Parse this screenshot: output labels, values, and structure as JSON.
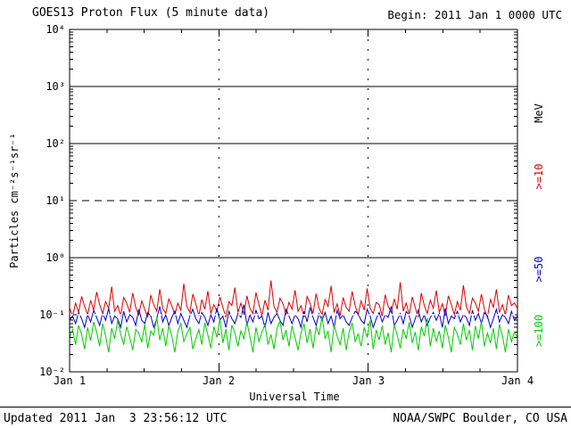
{
  "header": {
    "title": "GOES13 Proton Flux (5 minute data)",
    "begin_label": "Begin: 2011 Jan 1 0000 UTC"
  },
  "footer": {
    "updated": "Updated 2011 Jan  3 23:56:12 UTC",
    "source": "NOAA/SWPC Boulder, CO USA"
  },
  "axes": {
    "y_label": "Particles cm⁻²s⁻¹sr⁻¹",
    "x_label": "Universal Time",
    "y_ticks": [
      "10⁴",
      "10³",
      "10²",
      "10¹",
      "10⁰",
      "10⁻¹",
      "10⁻²"
    ],
    "x_ticks": [
      "Jan 1",
      "Jan 2",
      "Jan 3",
      "Jan 4"
    ]
  },
  "legend": {
    "unit": "MeV",
    "unit_color": "#000000",
    "items": [
      {
        "label": ">=10",
        "color": "#dd0000"
      },
      {
        "label": ">=50",
        "color": "#0000cc"
      },
      {
        "label": ">=100",
        "color": "#00cc00"
      }
    ]
  },
  "chart_data": {
    "type": "line",
    "title": "GOES13 Proton Flux (5 minute data)",
    "xlabel": "Universal Time",
    "ylabel": "Particles cm⁻²s⁻¹sr⁻¹",
    "x_range": [
      "2011 Jan 1 0000 UTC",
      "2011 Jan 4 0000 UTC"
    ],
    "x_tick_days": [
      "Jan 1",
      "Jan 2",
      "Jan 3",
      "Jan 4"
    ],
    "y_scale": "log10",
    "ylim": [
      0.01,
      10000
    ],
    "gridlines": {
      "solid_y": [
        1,
        100,
        1000
      ],
      "dashed_y": [
        10
      ],
      "white_dashed_y": [
        0.1
      ],
      "dashed_x_days": [
        1,
        2
      ]
    },
    "legend_position": "right",
    "unit_scale": 0.001,
    "series": [
      {
        "name": ">=10 MeV",
        "color": "#dd0000",
        "approx_level": 0.14,
        "range": [
          0.09,
          0.42
        ],
        "values_milli": [
          130,
          95,
          160,
          110,
          210,
          140,
          100,
          180,
          120,
          250,
          150,
          105,
          170,
          130,
          310,
          115,
          145,
          95,
          200,
          160,
          110,
          240,
          135,
          100,
          175,
          125,
          90,
          220,
          150,
          115,
          280,
          130,
          105,
          190,
          145,
          100,
          160,
          120,
          350,
          140,
          110,
          230,
          155,
          95,
          185,
          125,
          260,
          105,
          150,
          115,
          205,
          135,
          90,
          170,
          145,
          300,
          110,
          160,
          100,
          215,
          130,
          105,
          245,
          150,
          95,
          180,
          120,
          400,
          140,
          110,
          195,
          155,
          100,
          165,
          125,
          270,
          115,
          145,
          90,
          210,
          160,
          105,
          235,
          130,
          100,
          185,
          140,
          320,
          110,
          155,
          95,
          200,
          135,
          115,
          255,
          145,
          100,
          175,
          120,
          290,
          130,
          105,
          165,
          150,
          95,
          225,
          140,
          110,
          190,
          125,
          370,
          115,
          160,
          100,
          205,
          135,
          90,
          240,
          145,
          105,
          180,
          130,
          265,
          110,
          155,
          95,
          215,
          150,
          100,
          170,
          120,
          330,
          140,
          105,
          195,
          160,
          115,
          230,
          125,
          90,
          185,
          135,
          280,
          110,
          150,
          100,
          220,
          145,
          160,
          130
        ]
      },
      {
        "name": ">=50 MeV",
        "color": "#0000cc",
        "approx_level": 0.09,
        "range": [
          0.055,
          0.15
        ],
        "values_milli": [
          80,
          95,
          70,
          110,
          85,
          60,
          100,
          75,
          120,
          90,
          65,
          105,
          80,
          130,
          70,
          95,
          85,
          60,
          115,
          75,
          100,
          90,
          65,
          125,
          80,
          70,
          110,
          95,
          60,
          85,
          140,
          75,
          100,
          65,
          90,
          115,
          70,
          105,
          80,
          60,
          95,
          125,
          85,
          70,
          110,
          90,
          65,
          100,
          75,
          130,
          80,
          95,
          60,
          115,
          85,
          70,
          105,
          90,
          150,
          65,
          100,
          75,
          120,
          85,
          95,
          60,
          110,
          70,
          90,
          105,
          80,
          65,
          125,
          95,
          70,
          100,
          85,
          60,
          115,
          75,
          135,
          90,
          65,
          105,
          80,
          110,
          70,
          95,
          60,
          120,
          85,
          100,
          75,
          65,
          90,
          115,
          105,
          80,
          70,
          125,
          95,
          60,
          85,
          110,
          75,
          100,
          90,
          140,
          65,
          80,
          105,
          70,
          115,
          95,
          60,
          85,
          120,
          75,
          100,
          65,
          90,
          110,
          80,
          105,
          60,
          130,
          70,
          95,
          85,
          115,
          75,
          100,
          90,
          65,
          120,
          80,
          105,
          70,
          110,
          95,
          60,
          85,
          125,
          75,
          100,
          90,
          70,
          115,
          80,
          95
        ]
      },
      {
        "name": ">=100 MeV",
        "color": "#00cc00",
        "approx_level": 0.045,
        "range": [
          0.02,
          0.095
        ],
        "values_milli": [
          40,
          55,
          30,
          65,
          45,
          25,
          60,
          35,
          75,
          50,
          28,
          70,
          42,
          22,
          58,
          38,
          80,
          46,
          30,
          62,
          40,
          24,
          55,
          48,
          33,
          68,
          26,
          52,
          44,
          90,
          36,
          58,
          28,
          64,
          42,
          22,
          50,
          70,
          34,
          46,
          60,
          25,
          38,
          55,
          30,
          72,
          44,
          26,
          62,
          40,
          85,
          32,
          56,
          24,
          66,
          48,
          28,
          52,
          38,
          74,
          42,
          22,
          60,
          34,
          50,
          68,
          30,
          45,
          25,
          58,
          78,
          36,
          54,
          28,
          64,
          40,
          24,
          48,
          70,
          32,
          56,
          26,
          62,
          44,
          95,
          38,
          52,
          22,
          66,
          42,
          30,
          58,
          24,
          50,
          72,
          34,
          46,
          28,
          60,
          40,
          80,
          25,
          54,
          36,
          64,
          30,
          48,
          22,
          68,
          44,
          26,
          56,
          38,
          74,
          32,
          50,
          24,
          62,
          42,
          88,
          28,
          58,
          34,
          52,
          26,
          66,
          40,
          22,
          60,
          46,
          30,
          70,
          36,
          54,
          24,
          64,
          38,
          76,
          28,
          48,
          32,
          58,
          25,
          68,
          42,
          22,
          56,
          34,
          50,
          40
        ]
      }
    ]
  }
}
